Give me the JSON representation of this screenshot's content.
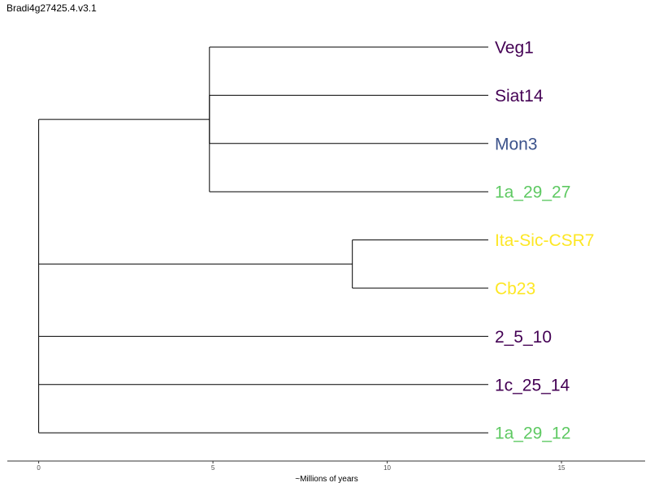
{
  "title": "Bradi4g27425.4.v3.1",
  "chart_data": {
    "type": "dendrogram",
    "xlabel": "~Millions of years",
    "xlim": [
      -0.9,
      17.4
    ],
    "xticks": [
      0,
      5,
      10,
      15
    ],
    "grid": false,
    "tips": [
      {
        "label": "Veg1",
        "color": "#440154"
      },
      {
        "label": "Siat14",
        "color": "#440154"
      },
      {
        "label": "Mon3",
        "color": "#3b528b"
      },
      {
        "label": "1a_29_27",
        "color": "#5ec962"
      },
      {
        "label": "Ita-Sic-CSR7",
        "color": "#fde725"
      },
      {
        "label": "Cb23",
        "color": "#fde725"
      },
      {
        "label": "2_5_10",
        "color": "#440154"
      },
      {
        "label": "1c_25_14",
        "color": "#440154"
      },
      {
        "label": "1a_29_12",
        "color": "#5ec962"
      }
    ],
    "tip_depth": 12.9,
    "nodes": [
      {
        "x": 0.0,
        "children": [
          "A",
          "B",
          6,
          7,
          8
        ]
      },
      {
        "id": "A",
        "x": 4.9,
        "children": [
          0,
          "A2",
          3
        ]
      },
      {
        "id": "A2",
        "x": 4.9,
        "children": [
          1,
          2
        ]
      },
      {
        "id": "B",
        "x": 9.0,
        "children": [
          4,
          5
        ]
      }
    ]
  }
}
